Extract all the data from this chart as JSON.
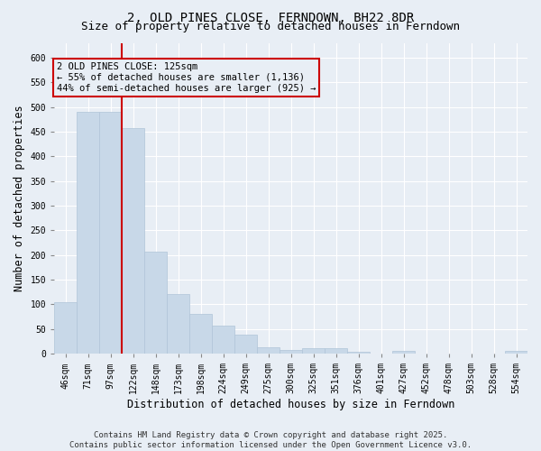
{
  "title_line1": "2, OLD PINES CLOSE, FERNDOWN, BH22 8DR",
  "title_line2": "Size of property relative to detached houses in Ferndown",
  "xlabel": "Distribution of detached houses by size in Ferndown",
  "ylabel": "Number of detached properties",
  "footer": "Contains HM Land Registry data © Crown copyright and database right 2025.\nContains public sector information licensed under the Open Government Licence v3.0.",
  "categories": [
    "46sqm",
    "71sqm",
    "97sqm",
    "122sqm",
    "148sqm",
    "173sqm",
    "198sqm",
    "224sqm",
    "249sqm",
    "275sqm",
    "300sqm",
    "325sqm",
    "351sqm",
    "376sqm",
    "401sqm",
    "427sqm",
    "452sqm",
    "478sqm",
    "503sqm",
    "528sqm",
    "554sqm"
  ],
  "values": [
    105,
    490,
    490,
    457,
    207,
    121,
    81,
    57,
    39,
    14,
    8,
    11,
    11,
    4,
    0,
    5,
    0,
    0,
    0,
    0,
    6
  ],
  "bar_color": "#c8d8e8",
  "bar_edge_color": "#b0c4d8",
  "vline_x_index": 3,
  "vline_color": "#cc0000",
  "annotation_box_text": "2 OLD PINES CLOSE: 125sqm\n← 55% of detached houses are smaller (1,136)\n44% of semi-detached houses are larger (925) →",
  "ylim": [
    0,
    630
  ],
  "yticks": [
    0,
    50,
    100,
    150,
    200,
    250,
    300,
    350,
    400,
    450,
    500,
    550,
    600
  ],
  "background_color": "#e8eef5",
  "plot_bg_color": "#e8eef5",
  "grid_color": "#ffffff",
  "title_fontsize": 10,
  "subtitle_fontsize": 9,
  "tick_fontsize": 7,
  "label_fontsize": 8.5,
  "footer_fontsize": 6.5,
  "ann_fontsize": 7.5
}
